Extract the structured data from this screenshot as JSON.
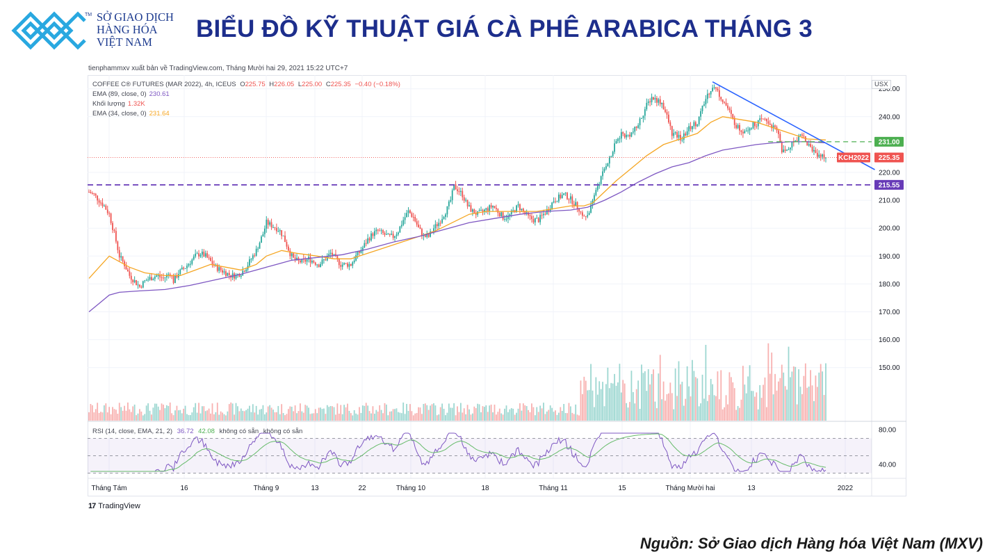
{
  "header": {
    "logo_lines": [
      "SỞ GIAO DỊCH",
      "HÀNG HÓA",
      "VIỆT NAM"
    ],
    "trademark": "TM",
    "title": "BIỂU ĐỒ KỸ THUẬT GIÁ CÀ PHÊ ARABICA THÁNG 3",
    "brand_color": "#1d3b8f",
    "logo_color": "#29a8e0"
  },
  "publisher": "tienphammxv xuất bản về TradingView.com, Tháng Mười hai 29, 2021 15:22 UTC+7",
  "legend": {
    "symbol": "COFFEE C® FUTURES (MAR 2022), 4h, ICEUS",
    "ohlc": [
      {
        "label": "O",
        "value": "225.75"
      },
      {
        "label": "H",
        "value": "226.05"
      },
      {
        "label": "L",
        "value": "225.00"
      },
      {
        "label": "C",
        "value": "225.35"
      }
    ],
    "change": "−0.40 (−0.18%)",
    "ema89": {
      "label": "EMA (89, close, 0)",
      "value": "230.61",
      "color": "#7e57c2"
    },
    "volume": {
      "label": "Khối lượng",
      "value": "1.32K",
      "color": "#ef5350"
    },
    "ema34": {
      "label": "EMA (34, close, 0)",
      "value": "231.64",
      "color": "#f5a623"
    },
    "rsi": {
      "label": "RSI (14, close, EMA, 21, 2)",
      "v1": "36.72",
      "v2": "42.08",
      "na1": "không có sẵn",
      "na2": "không có sẵn"
    }
  },
  "currency": "USX",
  "footer": {
    "tv_logo": "17",
    "tv_brand": "TradingView",
    "source": "Nguồn: Sở Giao dịch Hàng hóa Việt Nam (MXV)"
  },
  "chart_data": {
    "type": "candlestick",
    "interval": "4h",
    "y_ticks": [
      "250.00",
      "240.00",
      "220.00",
      "210.00",
      "200.00",
      "190.00",
      "180.00",
      "170.00",
      "160.00",
      "150.00"
    ],
    "ylim": [
      141,
      253
    ],
    "x_ticks": [
      "Tháng Tám",
      "16",
      "Tháng 9",
      "13",
      "22",
      "Tháng 10",
      "18",
      "Tháng 11",
      "15",
      "Tháng Mười hai",
      "13",
      "2022"
    ],
    "close_path": [
      [
        0,
        213
      ],
      [
        3,
        212
      ],
      [
        6,
        210
      ],
      [
        9,
        208
      ],
      [
        12,
        205
      ],
      [
        15,
        198
      ],
      [
        18,
        190
      ],
      [
        21,
        187
      ],
      [
        24,
        183
      ],
      [
        27,
        181
      ],
      [
        30,
        179
      ],
      [
        33,
        181
      ],
      [
        36,
        182
      ],
      [
        40,
        183
      ],
      [
        44,
        182
      ],
      [
        48,
        184
      ],
      [
        50,
        181
      ],
      [
        53,
        184
      ],
      [
        57,
        186
      ],
      [
        60,
        188
      ],
      [
        63,
        190
      ],
      [
        66,
        191
      ],
      [
        69,
        190
      ],
      [
        72,
        188
      ],
      [
        75,
        186
      ],
      [
        78,
        185
      ],
      [
        81,
        184
      ],
      [
        84,
        183
      ],
      [
        87,
        183
      ],
      [
        90,
        184
      ],
      [
        93,
        186
      ],
      [
        96,
        189
      ],
      [
        99,
        192
      ],
      [
        101,
        195
      ],
      [
        103,
        198
      ],
      [
        105,
        202
      ],
      [
        108,
        201
      ],
      [
        111,
        200
      ],
      [
        113,
        199
      ],
      [
        115,
        197
      ],
      [
        117,
        194
      ],
      [
        119,
        191
      ],
      [
        121,
        189
      ],
      [
        124,
        188
      ],
      [
        127,
        188
      ],
      [
        130,
        189
      ],
      [
        133,
        188
      ],
      [
        136,
        187
      ],
      [
        140,
        189
      ],
      [
        143,
        191
      ],
      [
        146,
        189
      ],
      [
        149,
        187
      ],
      [
        152,
        187
      ],
      [
        155,
        187
      ],
      [
        158,
        190
      ],
      [
        161,
        192
      ],
      [
        165,
        196
      ],
      [
        168,
        198
      ],
      [
        171,
        199
      ],
      [
        174,
        198
      ],
      [
        177,
        197
      ],
      [
        180,
        197
      ],
      [
        183,
        199
      ],
      [
        186,
        203
      ],
      [
        189,
        206
      ],
      [
        192,
        204
      ],
      [
        195,
        200
      ],
      [
        198,
        197
      ],
      [
        201,
        197
      ],
      [
        204,
        200
      ],
      [
        207,
        202
      ],
      [
        210,
        205
      ],
      [
        212,
        207
      ],
      [
        214,
        210
      ],
      [
        216,
        215
      ],
      [
        218,
        214
      ],
      [
        221,
        212
      ],
      [
        224,
        208
      ],
      [
        227,
        206
      ],
      [
        230,
        205
      ],
      [
        233,
        206
      ],
      [
        236,
        207
      ],
      [
        239,
        208
      ],
      [
        242,
        206
      ],
      [
        245,
        204
      ],
      [
        248,
        204
      ],
      [
        251,
        206
      ],
      [
        254,
        208
      ],
      [
        257,
        206
      ],
      [
        260,
        204
      ],
      [
        263,
        203
      ],
      [
        266,
        203
      ],
      [
        269,
        205
      ],
      [
        272,
        207
      ],
      [
        275,
        210
      ],
      [
        278,
        211
      ],
      [
        281,
        212
      ],
      [
        284,
        211
      ],
      [
        287,
        209
      ],
      [
        290,
        207
      ],
      [
        292,
        204
      ],
      [
        295,
        205
      ],
      [
        298,
        209
      ],
      [
        300,
        214
      ],
      [
        303,
        218
      ],
      [
        306,
        223
      ],
      [
        309,
        226
      ],
      [
        312,
        231
      ],
      [
        315,
        234
      ],
      [
        318,
        233
      ],
      [
        321,
        234
      ],
      [
        324,
        236
      ],
      [
        327,
        240
      ],
      [
        330,
        244
      ],
      [
        333,
        247
      ],
      [
        336,
        246
      ],
      [
        339,
        245
      ],
      [
        342,
        240
      ],
      [
        345,
        234
      ],
      [
        348,
        233
      ],
      [
        351,
        232
      ],
      [
        354,
        235
      ],
      [
        357,
        237
      ],
      [
        360,
        238
      ],
      [
        363,
        243
      ],
      [
        366,
        248
      ],
      [
        369,
        251
      ],
      [
        372,
        249
      ],
      [
        375,
        246
      ],
      [
        378,
        243
      ],
      [
        381,
        239
      ],
      [
        384,
        236
      ],
      [
        387,
        235
      ],
      [
        390,
        236
      ],
      [
        393,
        237
      ],
      [
        396,
        238
      ],
      [
        399,
        239
      ],
      [
        402,
        238
      ],
      [
        405,
        236
      ],
      [
        408,
        234
      ],
      [
        410,
        228
      ],
      [
        412,
        227
      ],
      [
        414,
        229
      ],
      [
        417,
        231
      ],
      [
        420,
        233
      ],
      [
        422,
        234
      ],
      [
        424,
        231
      ],
      [
        427,
        229
      ],
      [
        430,
        227
      ],
      [
        433,
        226
      ],
      [
        436,
        225.35
      ]
    ],
    "ema34_path": [
      [
        0,
        182
      ],
      [
        6,
        186
      ],
      [
        12,
        190
      ],
      [
        18,
        188
      ],
      [
        24,
        186
      ],
      [
        33,
        184
      ],
      [
        45,
        183
      ],
      [
        54,
        183
      ],
      [
        63,
        185
      ],
      [
        72,
        187
      ],
      [
        81,
        186
      ],
      [
        90,
        185
      ],
      [
        99,
        187
      ],
      [
        105,
        190
      ],
      [
        114,
        192
      ],
      [
        123,
        191
      ],
      [
        135,
        190
      ],
      [
        145,
        189
      ],
      [
        155,
        189
      ],
      [
        165,
        191
      ],
      [
        175,
        193
      ],
      [
        185,
        195
      ],
      [
        195,
        197
      ],
      [
        205,
        199
      ],
      [
        215,
        202
      ],
      [
        225,
        205
      ],
      [
        235,
        206
      ],
      [
        245,
        206
      ],
      [
        255,
        206
      ],
      [
        265,
        206
      ],
      [
        275,
        207
      ],
      [
        285,
        208
      ],
      [
        293,
        208
      ],
      [
        298,
        209
      ],
      [
        305,
        213
      ],
      [
        312,
        217
      ],
      [
        320,
        221
      ],
      [
        330,
        226
      ],
      [
        340,
        230
      ],
      [
        350,
        232
      ],
      [
        360,
        234
      ],
      [
        368,
        238
      ],
      [
        375,
        240
      ],
      [
        385,
        239
      ],
      [
        395,
        238
      ],
      [
        405,
        236
      ],
      [
        415,
        234
      ],
      [
        425,
        232
      ],
      [
        436,
        231.64
      ]
    ],
    "ema89_path": [
      [
        0,
        170
      ],
      [
        6,
        173
      ],
      [
        12,
        176
      ],
      [
        18,
        177
      ],
      [
        30,
        177.5
      ],
      [
        45,
        178
      ],
      [
        60,
        179.5
      ],
      [
        75,
        181.5
      ],
      [
        90,
        183.5
      ],
      [
        105,
        186
      ],
      [
        120,
        188.5
      ],
      [
        135,
        189.5
      ],
      [
        150,
        190.5
      ],
      [
        165,
        192.5
      ],
      [
        180,
        195
      ],
      [
        195,
        197
      ],
      [
        210,
        199.5
      ],
      [
        225,
        202
      ],
      [
        240,
        203.5
      ],
      [
        255,
        205
      ],
      [
        270,
        206
      ],
      [
        285,
        206.5
      ],
      [
        295,
        207.5
      ],
      [
        305,
        210
      ],
      [
        315,
        213
      ],
      [
        325,
        216.5
      ],
      [
        335,
        219.5
      ],
      [
        345,
        222
      ],
      [
        355,
        223.5
      ],
      [
        365,
        226
      ],
      [
        375,
        228
      ],
      [
        385,
        229
      ],
      [
        395,
        230
      ],
      [
        405,
        230.6
      ],
      [
        415,
        231
      ],
      [
        425,
        231
      ],
      [
        436,
        230.61
      ]
    ],
    "trendline": {
      "from": [
        369,
        252.5
      ],
      "to": [
        465,
        221
      ]
    },
    "level_resistance": 231.0,
    "level_support": 215.55,
    "last_price": 225.35,
    "labels": {
      "resistance": "231.00",
      "support": "215.55",
      "symbol_tag": "KCH2022",
      "last": "225.35"
    },
    "rsi_ticks": [
      "80.00",
      "40.00"
    ],
    "rsi_levels": {
      "top": 70,
      "mid": 50,
      "bottom": 30
    },
    "colors": {
      "up": "#26a69a",
      "down": "#ef5350",
      "ema34": "#f5a623",
      "ema89": "#7e57c2",
      "rsi": "#7e57c2",
      "rsi_ema": "#66bb6a",
      "trendline": "#2962ff",
      "resistance": "#4caf50",
      "support": "#673ab7",
      "last": "#ef5350"
    }
  }
}
